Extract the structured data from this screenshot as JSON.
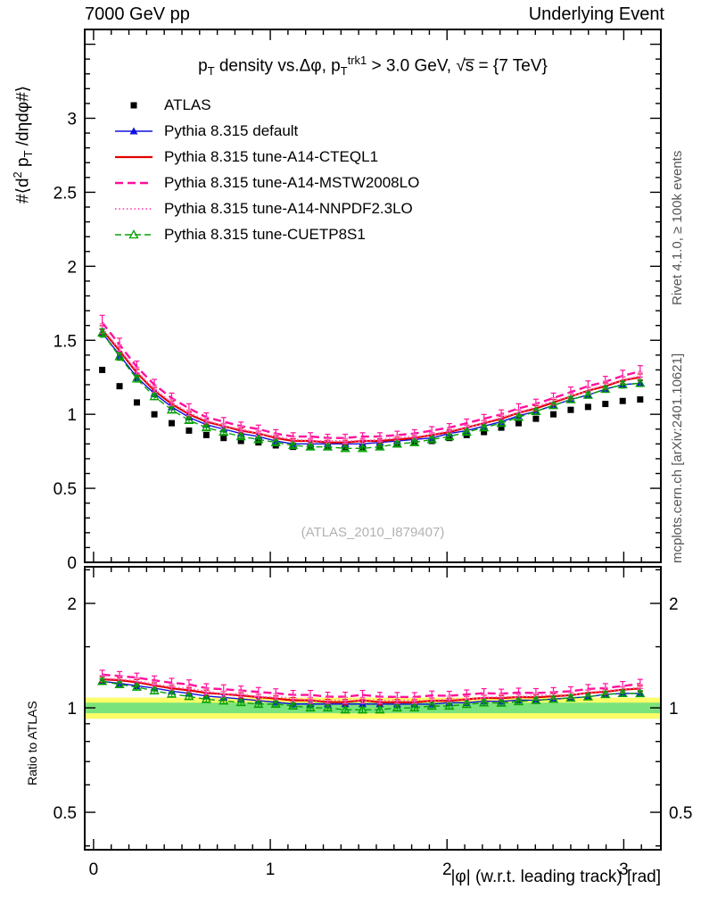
{
  "header": {
    "left": "7000 GeV pp",
    "right": "Underlying Event"
  },
  "title_segments": [
    {
      "t": "p"
    },
    {
      "t": "T",
      "s": "sub"
    },
    {
      "t": " density vs.Δφ, p"
    },
    {
      "t": "T",
      "s": "sub"
    },
    {
      "t": "trk1",
      "s": "sup"
    },
    {
      "t": " > 3.0 GeV, √s̅ = {7 TeV}"
    }
  ],
  "ylabel_segments": [
    {
      "t": "#⟨d"
    },
    {
      "t": "2",
      "s": "sup"
    },
    {
      "t": " p"
    },
    {
      "t": "T",
      "s": "sub"
    },
    {
      "t": " /dηdφ#⟩"
    }
  ],
  "ratio_ylabel": "Ratio to ATLAS",
  "xlabel": "|φ| (w.r.t. leading track) [rad]",
  "watermark": "(ATLAS_2010_I879407)",
  "side_texts": {
    "top_right": "Rivet 4.1.0, ≥ 100k events",
    "bottom_right": "mcplots.cern.ch [arXiv:2401.10621]"
  },
  "chart_data": {
    "type": "line",
    "title": "pT density vs. Δφ, pT(trk1) > 3.0 GeV, sqrt(s) = 7 TeV",
    "xlabel": "|φ| (w.r.t. leading track) [rad]",
    "ylabel": "#<d2 pT/dηdφ#>",
    "x": [
      0.049,
      0.147,
      0.245,
      0.344,
      0.442,
      0.54,
      0.638,
      0.736,
      0.834,
      0.933,
      1.031,
      1.129,
      1.227,
      1.325,
      1.424,
      1.522,
      1.62,
      1.718,
      1.816,
      1.914,
      2.013,
      2.111,
      2.209,
      2.307,
      2.405,
      2.503,
      2.602,
      2.7,
      2.798,
      2.896,
      2.994,
      3.093
    ],
    "series": [
      {
        "name": "ATLAS",
        "color": "#000000",
        "marker": "square-filled",
        "line": "none",
        "err_rel": 0.012,
        "values": [
          1.3,
          1.19,
          1.08,
          1.0,
          0.94,
          0.89,
          0.86,
          0.84,
          0.82,
          0.81,
          0.79,
          0.78,
          0.78,
          0.78,
          0.78,
          0.78,
          0.79,
          0.8,
          0.81,
          0.82,
          0.84,
          0.86,
          0.88,
          0.91,
          0.94,
          0.97,
          1.0,
          1.03,
          1.05,
          1.07,
          1.09,
          1.1
        ]
      },
      {
        "name": "Pythia 8.315 default",
        "color": "#1010dd",
        "marker": "triangle-filled",
        "line": "solid",
        "width": 1.4,
        "err_rel": 0.018,
        "values": [
          1.55,
          1.4,
          1.25,
          1.14,
          1.05,
          0.98,
          0.93,
          0.9,
          0.87,
          0.85,
          0.82,
          0.8,
          0.8,
          0.8,
          0.8,
          0.8,
          0.81,
          0.82,
          0.83,
          0.84,
          0.87,
          0.89,
          0.92,
          0.95,
          0.99,
          1.02,
          1.06,
          1.1,
          1.13,
          1.17,
          1.2,
          1.21
        ]
      },
      {
        "name": "Pythia 8.315 tune-A14-CTEQL1",
        "color": "#e10000",
        "marker": "none",
        "line": "solid",
        "width": 2.2,
        "err_rel": 0.018,
        "values": [
          1.57,
          1.43,
          1.28,
          1.16,
          1.07,
          1.0,
          0.95,
          0.92,
          0.89,
          0.87,
          0.84,
          0.82,
          0.82,
          0.81,
          0.81,
          0.82,
          0.82,
          0.83,
          0.84,
          0.86,
          0.88,
          0.91,
          0.94,
          0.97,
          1.01,
          1.04,
          1.08,
          1.12,
          1.16,
          1.19,
          1.23,
          1.25
        ]
      },
      {
        "name": "Pythia 8.315 tune-A14-MSTW2008LO",
        "color": "#ff0f9c",
        "marker": "none",
        "line": "dashed",
        "dash": "9,5",
        "width": 2.4,
        "err_rel": 0.03,
        "values": [
          1.62,
          1.47,
          1.32,
          1.2,
          1.11,
          1.04,
          0.98,
          0.95,
          0.92,
          0.9,
          0.87,
          0.85,
          0.85,
          0.84,
          0.84,
          0.85,
          0.85,
          0.86,
          0.87,
          0.89,
          0.91,
          0.94,
          0.97,
          1.0,
          1.04,
          1.07,
          1.11,
          1.15,
          1.19,
          1.22,
          1.26,
          1.29
        ]
      },
      {
        "name": "Pythia 8.315 tune-A14-NNPDF2.3LO",
        "color": "#ff5fc0",
        "marker": "none",
        "line": "dotted",
        "dash": "1.5,2.8",
        "width": 2,
        "err_rel": 0.02,
        "values": [
          1.58,
          1.44,
          1.29,
          1.17,
          1.08,
          1.01,
          0.96,
          0.92,
          0.9,
          0.87,
          0.85,
          0.83,
          0.82,
          0.82,
          0.82,
          0.82,
          0.83,
          0.84,
          0.85,
          0.86,
          0.89,
          0.91,
          0.94,
          0.98,
          1.01,
          1.05,
          1.09,
          1.12,
          1.16,
          1.2,
          1.23,
          1.26
        ]
      },
      {
        "name": "Pythia 8.315 tune-CUETP8S1",
        "color": "#08a008",
        "marker": "triangle-open",
        "line": "dashed",
        "dash": "7,4",
        "width": 1.4,
        "err_rel": 0.018,
        "values": [
          1.55,
          1.39,
          1.24,
          1.12,
          1.03,
          0.96,
          0.91,
          0.88,
          0.85,
          0.83,
          0.81,
          0.79,
          0.78,
          0.78,
          0.77,
          0.77,
          0.78,
          0.8,
          0.81,
          0.83,
          0.85,
          0.88,
          0.91,
          0.94,
          0.98,
          1.02,
          1.06,
          1.1,
          1.13,
          1.17,
          1.2,
          1.21
        ]
      }
    ],
    "main_axis": {
      "xlim": [
        -0.05,
        3.21
      ],
      "ylim": [
        0,
        3.6
      ],
      "xticks": [
        0,
        1,
        2,
        3
      ],
      "yticks": [
        0,
        0.5,
        1,
        1.5,
        2,
        2.5,
        3
      ]
    },
    "ratio_axis": {
      "scale": "log",
      "ylim": [
        0.39,
        2.55
      ],
      "yticks": [
        0.5,
        1,
        2
      ],
      "minor_ticks": [
        0.4,
        0.5,
        0.6,
        0.7,
        0.8,
        0.9,
        1.0,
        1.5,
        2.0,
        2.5
      ],
      "band_yellow": [
        0.93,
        1.07
      ],
      "band_green": [
        0.965,
        1.035
      ]
    },
    "band_colors": {
      "yellow": "#fdfd68",
      "green": "#7be37b"
    },
    "grid": false,
    "legend_position": "top-left-inside"
  }
}
